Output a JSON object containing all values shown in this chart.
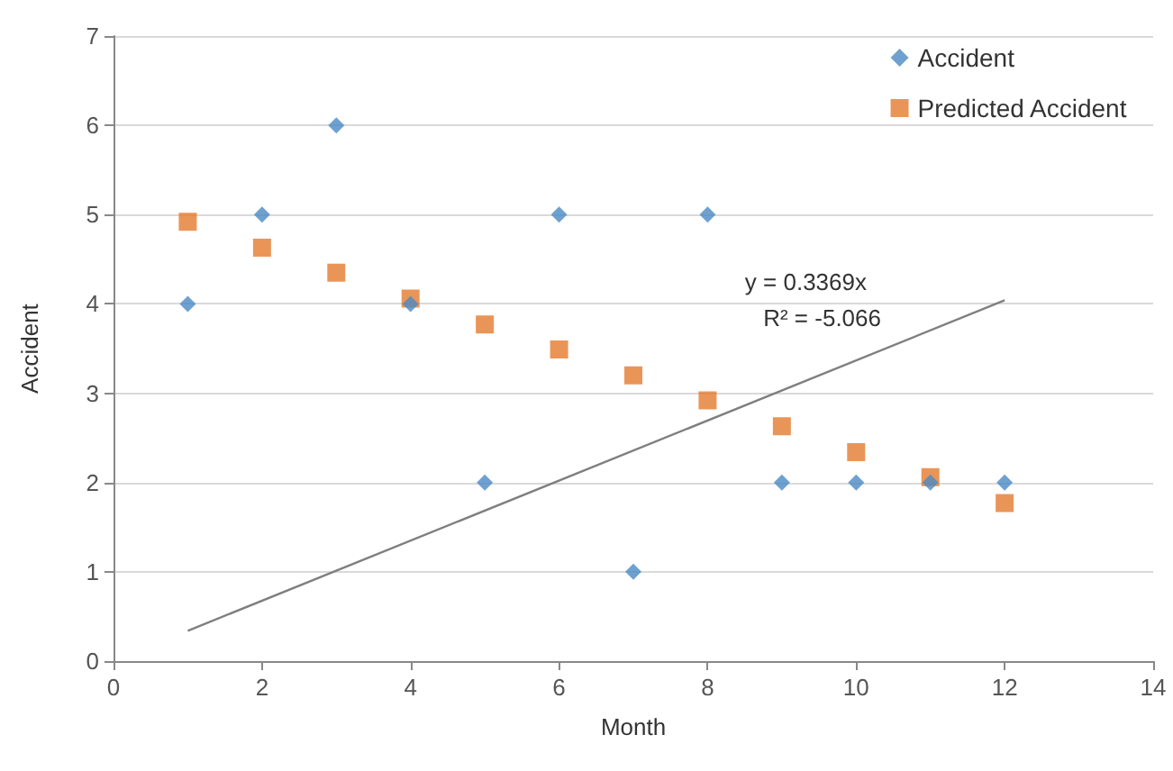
{
  "chart_data": {
    "type": "scatter",
    "xlabel": "Month",
    "ylabel": "Accident",
    "x": [
      1,
      2,
      3,
      4,
      5,
      6,
      7,
      8,
      9,
      10,
      11,
      12
    ],
    "series": [
      {
        "name": "Accident",
        "color": "#4a8ac4",
        "marker": "diamond",
        "values": [
          4,
          5,
          6,
          4,
          2,
          5,
          1,
          5,
          2,
          2,
          2,
          2
        ]
      },
      {
        "name": "Predicted Accident",
        "color": "#e57b2e",
        "marker": "square",
        "values": [
          4.92,
          4.63,
          4.35,
          4.06,
          3.77,
          3.49,
          3.2,
          2.92,
          2.63,
          2.34,
          2.06,
          1.77
        ]
      },
      {
        "type": "line",
        "color": "#7f7f7f",
        "marker": "none",
        "x": [
          1,
          12
        ],
        "values": [
          0.34,
          4.04
        ]
      }
    ],
    "annotations": [
      "y = 0.3369x",
      "R² = -5.066"
    ],
    "xlim": [
      0,
      14
    ],
    "xticks": [
      0,
      2,
      4,
      6,
      8,
      10,
      12,
      14
    ],
    "ylim": [
      0,
      7
    ],
    "yticks": [
      0,
      1,
      2,
      3,
      4,
      5,
      6,
      7
    ],
    "grid": "y",
    "legend": "top right"
  }
}
